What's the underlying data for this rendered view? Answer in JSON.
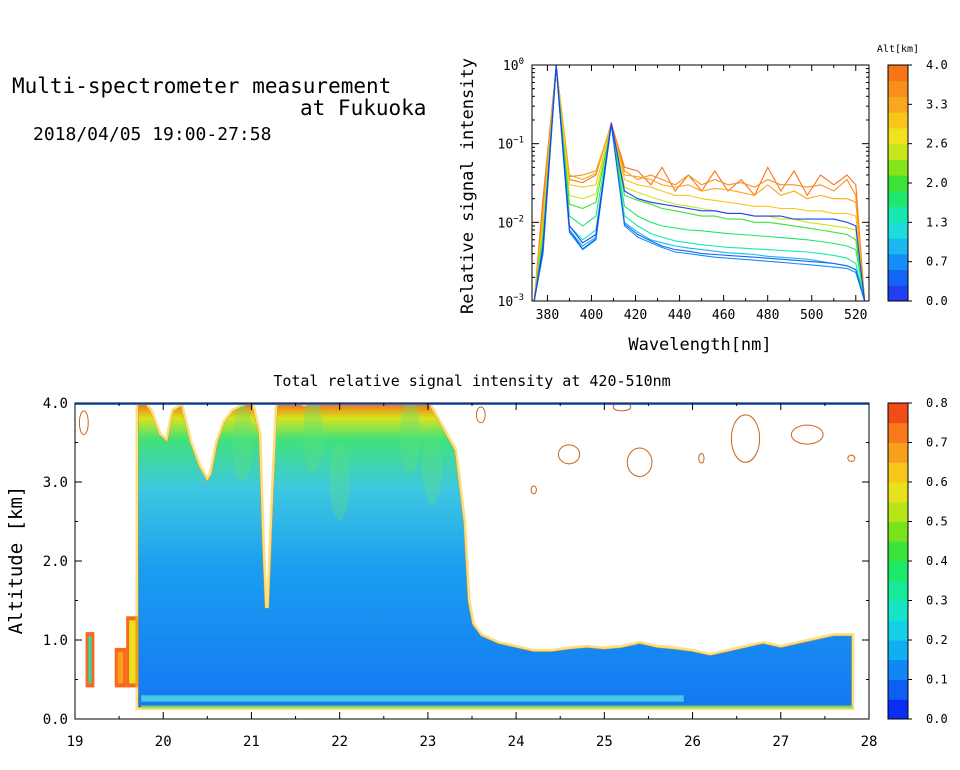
{
  "header": {
    "title_line1": "Multi-spectrometer measurement",
    "title_line2": "at Fukuoka",
    "datetime": "2018/04/05 19:00-27:58"
  },
  "chart_data": [
    {
      "type": "line",
      "xlabel": "Wavelength[nm]",
      "ylabel": "Relative signal intensity",
      "xlim": [
        373,
        526
      ],
      "ylim": [
        0.001,
        1
      ],
      "yscale": "log",
      "x_ticks": [
        "380",
        "400",
        "420",
        "440",
        "460",
        "480",
        "500",
        "520"
      ],
      "y_ticks": [
        {
          "base": "10",
          "exp": "0"
        },
        {
          "base": "10",
          "exp": "−1"
        },
        {
          "base": "10",
          "exp": "−2"
        },
        {
          "base": "10",
          "exp": "−3"
        }
      ],
      "colorbar": {
        "title": "Alt[km]",
        "tick_labels": [
          "4.0",
          "3.3",
          "2.6",
          "2.0",
          "1.3",
          "0.7",
          "0.0"
        ],
        "range": [
          0.0,
          4.0
        ],
        "colors": [
          "#1f3ff0",
          "#1565f5",
          "#158ef5",
          "#19b8f0",
          "#1fdcdc",
          "#17e8b0",
          "#20e86c",
          "#3de436",
          "#86e41a",
          "#c8e61a",
          "#f0e21c",
          "#f8c61a",
          "#f8a81c",
          "#f88e1c",
          "#f87418"
        ]
      },
      "x": [
        374,
        378,
        384,
        390,
        396,
        402,
        409,
        415,
        421,
        427,
        432,
        438,
        444,
        450,
        456,
        462,
        468,
        474,
        480,
        486,
        492,
        498,
        504,
        510,
        516,
        520,
        524
      ],
      "series": [
        {
          "alt": 4.0,
          "color": "#f87418",
          "values": [
            0.001,
            0.02,
            0.98,
            0.035,
            0.032,
            0.04,
            0.18,
            0.05,
            0.045,
            0.03,
            0.05,
            0.025,
            0.04,
            0.025,
            0.045,
            0.025,
            0.035,
            0.022,
            0.05,
            0.025,
            0.045,
            0.022,
            0.04,
            0.03,
            0.04,
            0.03,
            0.001
          ]
        },
        {
          "alt": 3.7,
          "color": "#f88e1c",
          "values": [
            0.001,
            0.015,
            0.97,
            0.038,
            0.04,
            0.045,
            0.17,
            0.045,
            0.035,
            0.04,
            0.035,
            0.03,
            0.04,
            0.03,
            0.035,
            0.03,
            0.032,
            0.028,
            0.035,
            0.03,
            0.03,
            0.028,
            0.03,
            0.025,
            0.035,
            0.022,
            0.001
          ]
        },
        {
          "alt": 3.3,
          "color": "#f8a81c",
          "values": [
            0.001,
            0.012,
            0.96,
            0.04,
            0.035,
            0.042,
            0.175,
            0.04,
            0.038,
            0.035,
            0.03,
            0.028,
            0.03,
            0.025,
            0.027,
            0.026,
            0.024,
            0.022,
            0.03,
            0.022,
            0.025,
            0.02,
            0.022,
            0.02,
            0.02,
            0.018,
            0.001
          ]
        },
        {
          "alt": 3.0,
          "color": "#f8c61a",
          "values": [
            0.001,
            0.01,
            0.95,
            0.03,
            0.028,
            0.03,
            0.17,
            0.035,
            0.03,
            0.028,
            0.025,
            0.022,
            0.022,
            0.02,
            0.019,
            0.018,
            0.017,
            0.016,
            0.016,
            0.015,
            0.015,
            0.014,
            0.014,
            0.013,
            0.013,
            0.012,
            0.001
          ]
        },
        {
          "alt": 2.6,
          "color": "#c8e61a",
          "values": [
            0.001,
            0.008,
            0.95,
            0.022,
            0.02,
            0.023,
            0.17,
            0.028,
            0.024,
            0.021,
            0.019,
            0.017,
            0.016,
            0.015,
            0.014,
            0.013,
            0.013,
            0.012,
            0.012,
            0.011,
            0.011,
            0.01,
            0.0095,
            0.009,
            0.0085,
            0.008,
            0.001
          ]
        },
        {
          "alt": 2.0,
          "color": "#3de436",
          "values": [
            0.001,
            0.007,
            0.95,
            0.017,
            0.015,
            0.018,
            0.17,
            0.022,
            0.019,
            0.017,
            0.015,
            0.014,
            0.013,
            0.012,
            0.012,
            0.011,
            0.011,
            0.01,
            0.01,
            0.0095,
            0.009,
            0.0085,
            0.008,
            0.0075,
            0.007,
            0.006,
            0.001
          ]
        },
        {
          "alt": 1.6,
          "color": "#20e86c",
          "values": [
            0.001,
            0.006,
            0.95,
            0.012,
            0.009,
            0.012,
            0.17,
            0.016,
            0.012,
            0.01,
            0.009,
            0.0085,
            0.008,
            0.0078,
            0.0075,
            0.0072,
            0.007,
            0.0068,
            0.0066,
            0.0064,
            0.0062,
            0.006,
            0.0057,
            0.0054,
            0.005,
            0.0045,
            0.001
          ]
        },
        {
          "alt": 1.3,
          "color": "#17e8b0",
          "values": [
            0.001,
            0.005,
            0.95,
            0.009,
            0.006,
            0.008,
            0.17,
            0.012,
            0.009,
            0.0072,
            0.0065,
            0.0058,
            0.0055,
            0.0052,
            0.005,
            0.0048,
            0.0047,
            0.0046,
            0.0045,
            0.0044,
            0.0043,
            0.0042,
            0.004,
            0.0038,
            0.0035,
            0.003,
            0.001
          ]
        },
        {
          "alt": 1.0,
          "color": "#19b8f0",
          "values": [
            0.001,
            0.004,
            0.96,
            0.008,
            0.005,
            0.0065,
            0.175,
            0.01,
            0.0075,
            0.006,
            0.0055,
            0.005,
            0.0047,
            0.0045,
            0.0043,
            0.0041,
            0.004,
            0.0039,
            0.0037,
            0.0036,
            0.0035,
            0.0034,
            0.0032,
            0.003,
            0.0028,
            0.0025,
            0.001
          ]
        },
        {
          "alt": 0.7,
          "color": "#158ef5",
          "values": [
            0.001,
            0.004,
            0.97,
            0.0075,
            0.0045,
            0.006,
            0.18,
            0.009,
            0.0065,
            0.0055,
            0.0048,
            0.0042,
            0.004,
            0.0038,
            0.0036,
            0.0035,
            0.0034,
            0.0033,
            0.0032,
            0.0031,
            0.003,
            0.0029,
            0.0028,
            0.0027,
            0.0026,
            0.0023,
            0.001
          ]
        },
        {
          "alt": 0.4,
          "color": "#1565f5",
          "values": [
            0.001,
            0.0045,
            0.98,
            0.008,
            0.0046,
            0.0062,
            0.18,
            0.0095,
            0.007,
            0.0058,
            0.005,
            0.0045,
            0.0043,
            0.004,
            0.0039,
            0.0038,
            0.0037,
            0.0036,
            0.0035,
            0.0034,
            0.0033,
            0.0032,
            0.0031,
            0.003,
            0.0028,
            0.0025,
            0.001
          ]
        },
        {
          "alt": 0.2,
          "color": "#1f3ff0",
          "values": [
            0.001,
            0.005,
            1.0,
            0.009,
            0.0055,
            0.007,
            0.185,
            0.025,
            0.02,
            0.018,
            0.017,
            0.016,
            0.015,
            0.014,
            0.014,
            0.013,
            0.013,
            0.012,
            0.012,
            0.012,
            0.011,
            0.011,
            0.011,
            0.011,
            0.01,
            0.009,
            0.001
          ]
        }
      ]
    },
    {
      "type": "heatmap",
      "title": "Total relative signal intensity at 420-510nm",
      "ylabel": "Altitude [km]",
      "xlim": [
        19,
        28
      ],
      "ylim": [
        0.0,
        4.0
      ],
      "x_ticks": [
        "19",
        "20",
        "21",
        "22",
        "23",
        "24",
        "25",
        "26",
        "27",
        "28"
      ],
      "y_ticks": [
        "0.0",
        "1.0",
        "2.0",
        "3.0",
        "4.0"
      ],
      "colorbar": {
        "tick_labels": [
          "0.8",
          "0.7",
          "0.6",
          "0.5",
          "0.4",
          "0.3",
          "0.2",
          "0.1",
          "0.0"
        ],
        "range": [
          0.0,
          0.8
        ],
        "colors": [
          "#0b2cf2",
          "#0f5ef4",
          "#1187f4",
          "#12aef2",
          "#15cfe8",
          "#16e4c8",
          "#17e89a",
          "#1ee86a",
          "#3ae43c",
          "#7ae21c",
          "#b8e41a",
          "#e8e21c",
          "#f8c61a",
          "#f8a01c",
          "#f87a1c",
          "#f04c18"
        ]
      },
      "regions": [
        {
          "x0": 19.12,
          "x1": 19.22,
          "top": 1.1,
          "fill": 0.3
        },
        {
          "x0": 19.45,
          "x1": 19.58,
          "top": 0.9,
          "fill": 0.65
        },
        {
          "x0": 19.58,
          "x1": 19.72,
          "top": 1.3,
          "fill": 0.55
        }
      ],
      "envelope": {
        "x": [
          19.72,
          19.78,
          19.85,
          19.95,
          20.05,
          20.12,
          20.2,
          20.3,
          20.4,
          20.5,
          20.55,
          20.62,
          20.7,
          20.8,
          20.9,
          21.0,
          21.08,
          21.12,
          21.15,
          21.2,
          21.25,
          21.3,
          21.4,
          21.5,
          21.6,
          21.7,
          21.8,
          21.9,
          22.0,
          22.2,
          22.4,
          22.6,
          22.8,
          23.0,
          23.1,
          23.2,
          23.3,
          23.4,
          23.45,
          23.5,
          23.6,
          23.8,
          24.0,
          24.2,
          24.4,
          24.6,
          24.8,
          25.0,
          25.2,
          25.4,
          25.6,
          25.8,
          26.0,
          26.2,
          26.4,
          26.6,
          26.8,
          27.0,
          27.2,
          27.4,
          27.6,
          27.8
        ],
        "top": [
          4.0,
          4.0,
          3.9,
          3.6,
          3.5,
          3.9,
          3.95,
          3.5,
          3.2,
          3.0,
          3.1,
          3.5,
          3.75,
          3.9,
          3.95,
          4.0,
          3.6,
          2.2,
          1.4,
          1.4,
          2.8,
          4.0,
          4.0,
          4.0,
          3.95,
          4.0,
          4.0,
          4.0,
          4.0,
          4.0,
          4.0,
          4.0,
          4.0,
          4.0,
          3.8,
          3.6,
          3.4,
          2.5,
          1.5,
          1.2,
          1.05,
          0.95,
          0.9,
          0.85,
          0.85,
          0.88,
          0.9,
          0.88,
          0.9,
          0.95,
          0.9,
          0.88,
          0.85,
          0.8,
          0.85,
          0.9,
          0.95,
          0.9,
          0.95,
          1.0,
          1.05,
          1.05
        ]
      },
      "cloud_base": 0.15,
      "contours": [
        {
          "cx": 19.1,
          "cy": 3.75,
          "rx": 0.05,
          "ry": 0.15
        },
        {
          "cx": 24.6,
          "cy": 3.35,
          "rx": 0.12,
          "ry": 0.12
        },
        {
          "cx": 25.4,
          "cy": 3.25,
          "rx": 0.14,
          "ry": 0.18
        },
        {
          "cx": 25.2,
          "cy": 3.95,
          "rx": 0.1,
          "ry": 0.05
        },
        {
          "cx": 26.6,
          "cy": 3.55,
          "rx": 0.16,
          "ry": 0.3
        },
        {
          "cx": 27.3,
          "cy": 3.6,
          "rx": 0.18,
          "ry": 0.12
        },
        {
          "cx": 27.8,
          "cy": 3.3,
          "rx": 0.04,
          "ry": 0.04
        },
        {
          "cx": 26.1,
          "cy": 3.3,
          "rx": 0.03,
          "ry": 0.06
        },
        {
          "cx": 24.2,
          "cy": 2.9,
          "rx": 0.03,
          "ry": 0.05
        },
        {
          "cx": 23.6,
          "cy": 3.85,
          "rx": 0.05,
          "ry": 0.1
        }
      ]
    }
  ]
}
